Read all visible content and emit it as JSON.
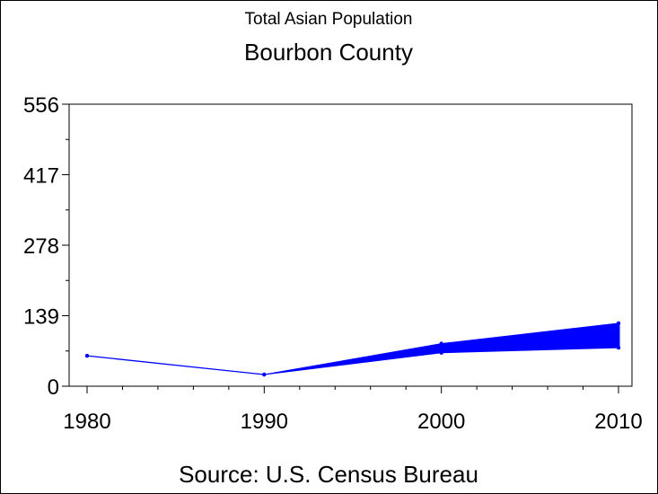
{
  "chart_data": {
    "type": "line",
    "title": "Total Asian Population",
    "subtitle": "Bourbon County",
    "footnote": "Source: U.S. Census Bureau",
    "xlabel": "",
    "ylabel": "",
    "x_ticks": [
      "1980",
      "1990",
      "2000",
      "2010"
    ],
    "y_ticks": [
      "0",
      "139",
      "278",
      "417",
      "556"
    ],
    "xlim": [
      1980,
      2010
    ],
    "ylim": [
      0,
      556
    ],
    "grid": false,
    "series": [
      {
        "color": "#0000ff",
        "points": [
          {
            "x": 1980,
            "y": 60
          },
          {
            "x": 1990,
            "y": 23
          }
        ]
      }
    ],
    "band": {
      "color": "#0000ff",
      "x": [
        1990,
        2000,
        2010
      ],
      "low": [
        23,
        66,
        76
      ],
      "high": [
        23,
        84,
        124
      ]
    }
  }
}
